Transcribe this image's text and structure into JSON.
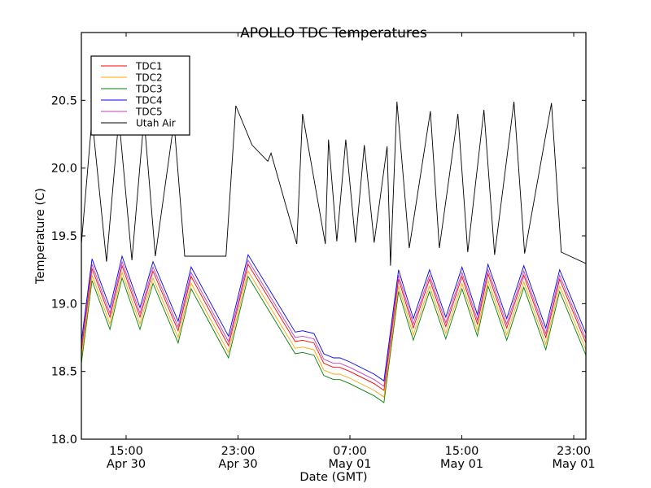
{
  "chart_data": {
    "type": "line",
    "title": "APOLLO TDC Temperatures",
    "xlabel": "Date (GMT)",
    "ylabel": "Temperature (C)",
    "x_units": "hours since Apr 30 00:00 GMT",
    "xlim": [
      11.8,
      47.87
    ],
    "ylim": [
      18.0,
      21.0
    ],
    "grid": false,
    "legend_position": "top-left",
    "yticks": [
      {
        "value": 18.0,
        "label": "18.0"
      },
      {
        "value": 18.5,
        "label": "18.5"
      },
      {
        "value": 19.0,
        "label": "19.0"
      },
      {
        "value": 19.5,
        "label": "19.5"
      },
      {
        "value": 20.0,
        "label": "20.0"
      },
      {
        "value": 20.5,
        "label": "20.5"
      }
    ],
    "xticks": [
      {
        "value": 15,
        "label": [
          "15:00",
          "Apr 30"
        ]
      },
      {
        "value": 23,
        "label": [
          "23:00",
          "Apr 30"
        ]
      },
      {
        "value": 31,
        "label": [
          "07:00",
          "May 01"
        ]
      },
      {
        "value": 39,
        "label": [
          "15:00",
          "May 01"
        ]
      },
      {
        "value": 47,
        "label": [
          "23:00",
          "May 01"
        ]
      }
    ],
    "series": [
      {
        "name": "TDC1",
        "color": "#ff0000",
        "offset_from": "TDC4",
        "offset": -0.07
      },
      {
        "name": "TDC2",
        "color": "#ffa500",
        "offset_from": "TDC4",
        "offset": -0.12
      },
      {
        "name": "TDC3",
        "color": "#008000",
        "offset_from": "TDC4",
        "offset": -0.16
      },
      {
        "name": "TDC4",
        "color": "#0000ff",
        "x": [
          11.8,
          12.56,
          13.84,
          14.71,
          15.99,
          16.92,
          18.72,
          19.65,
          22.32,
          23.72,
          27.09,
          27.61,
          28.43,
          29.13,
          29.83,
          30.29,
          30.99,
          31.57,
          32.73,
          33.43,
          34.48,
          35.53,
          36.69,
          37.85,
          39.01,
          40.11,
          40.87,
          42.21,
          43.43,
          45.0,
          45.99,
          47.87
        ],
        "y": [
          18.72,
          19.33,
          18.97,
          19.35,
          18.97,
          19.31,
          18.87,
          19.27,
          18.76,
          19.36,
          18.79,
          18.8,
          18.78,
          18.63,
          18.6,
          18.6,
          18.57,
          18.54,
          18.48,
          18.43,
          19.25,
          18.89,
          19.25,
          18.9,
          19.27,
          18.92,
          19.29,
          18.89,
          19.28,
          18.82,
          19.25,
          18.78
        ]
      },
      {
        "name": "TDC5",
        "color": "#bf40bf",
        "offset_from": "TDC4",
        "offset": -0.04
      },
      {
        "name": "Utah Air",
        "color": "#000000",
        "x": [
          11.8,
          12.56,
          13.6,
          14.48,
          15.41,
          16.28,
          17.09,
          18.42,
          19.19,
          22.14,
          22.84,
          24.0,
          25.13,
          25.36,
          27.2,
          27.61,
          29.24,
          29.47,
          30.06,
          30.7,
          31.4,
          32.03,
          32.73,
          33.66,
          33.9,
          34.36,
          35.24,
          36.75,
          37.39,
          38.72,
          39.42,
          40.58,
          41.34,
          42.73,
          43.49,
          45.41,
          46.11,
          48.0
        ],
        "y": [
          19.44,
          20.37,
          19.31,
          20.37,
          19.32,
          20.37,
          19.35,
          20.34,
          19.35,
          19.35,
          20.46,
          20.17,
          20.05,
          20.11,
          19.44,
          20.4,
          19.44,
          20.21,
          19.46,
          20.21,
          19.45,
          20.17,
          19.45,
          20.16,
          19.28,
          20.49,
          19.41,
          20.42,
          19.41,
          20.4,
          19.38,
          20.43,
          19.36,
          20.49,
          19.37,
          20.48,
          19.38,
          19.29
        ]
      }
    ]
  }
}
